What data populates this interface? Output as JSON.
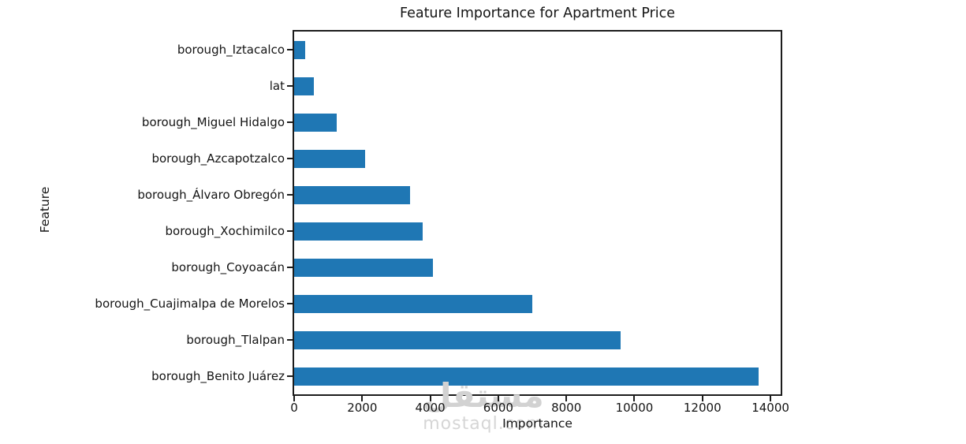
{
  "chart_data": {
    "type": "bar",
    "orientation": "horizontal",
    "title": "Feature Importance for Apartment Price",
    "xlabel": "Importance",
    "ylabel": "Feature",
    "categories_top_to_bottom": [
      "borough_Iztacalco",
      "lat",
      "borough_Miguel Hidalgo",
      "borough_Azcapotzalco",
      "borough_Álvaro Obregón",
      "borough_Xochimilco",
      "borough_Coyoacán",
      "borough_Cuajimalpa de Morelos",
      "borough_Tlalpan",
      "borough_Benito Juárez"
    ],
    "values": [
      330,
      580,
      1250,
      2080,
      3400,
      3780,
      4070,
      7000,
      9600,
      13650
    ],
    "xlim": [
      0,
      14300
    ],
    "xtick_labels": [
      "0",
      "2000",
      "4000",
      "6000",
      "8000",
      "10000",
      "12000",
      "14000"
    ],
    "xtick_values": [
      0,
      2000,
      4000,
      6000,
      8000,
      10000,
      12000,
      14000
    ],
    "bar_color": "#1f77b4",
    "grid": false,
    "legend_position": "none"
  },
  "watermark": {
    "logo_text": "مستقل",
    "domain_text": "mostaql.com",
    "color": "#d2d2d2"
  }
}
